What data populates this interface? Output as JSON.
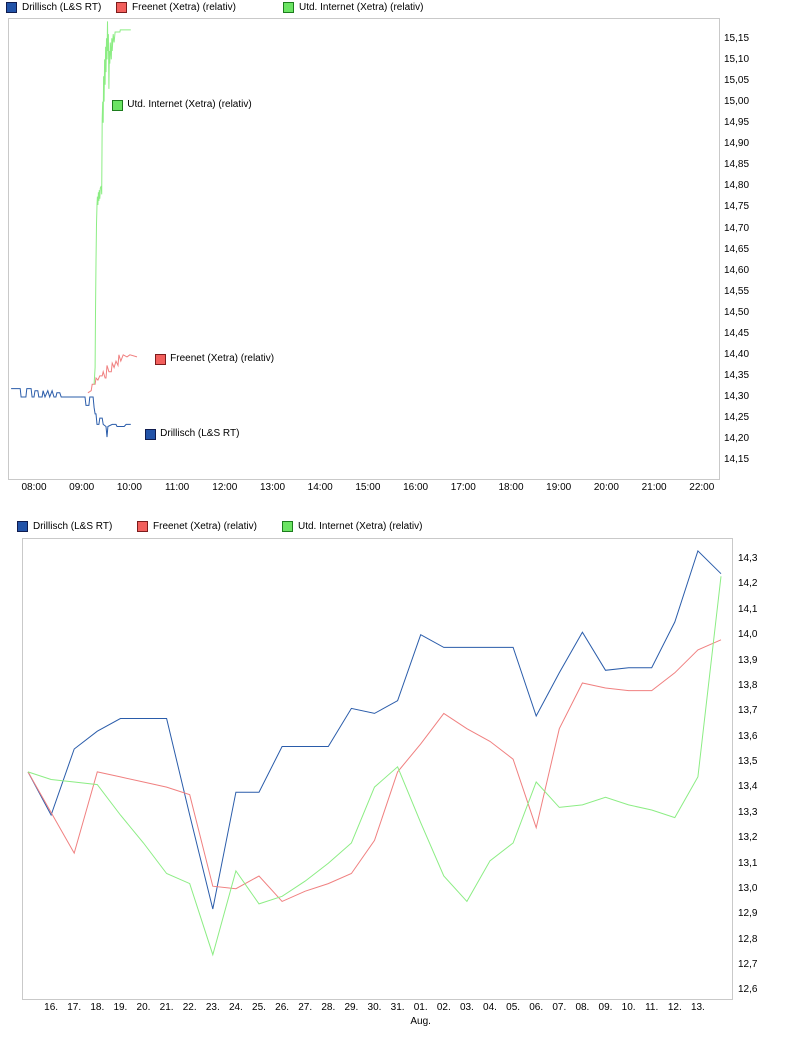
{
  "chart_data": [
    {
      "type": "line",
      "timeframe": "intraday",
      "legend": [
        {
          "label": "Drillisch (L&S RT)",
          "color": "#2253a8",
          "border": "#101c4e"
        },
        {
          "label": "Freenet (Xetra) (relativ)",
          "color": "#f25f5c",
          "border": "#7c1c1c"
        },
        {
          "label": "Utd. Internet (Xetra) (relativ)",
          "color": "#6be463",
          "border": "#1d7c1d"
        }
      ],
      "x_axis": {
        "tick_labels": [
          "08:00",
          "09:00",
          "10:00",
          "11:00",
          "12:00",
          "13:00",
          "14:00",
          "15:00",
          "16:00",
          "17:00",
          "18:00",
          "19:00",
          "20:00",
          "21:00",
          "22:00"
        ],
        "first_hour": 8,
        "step_hours": 1
      },
      "y_axis": {
        "tick_labels": [
          "15,15",
          "15,10",
          "15,05",
          "15,00",
          "14,95",
          "14,90",
          "14,85",
          "14,80",
          "14,75",
          "14,70",
          "14,65",
          "14,60",
          "14,55",
          "14,50",
          "14,45",
          "14,40",
          "14,35",
          "14,30",
          "14,25",
          "14,20",
          "14,15"
        ],
        "first_value": 15.15,
        "step": -0.05
      },
      "series": [
        {
          "name": "Drillisch (L&S RT)",
          "slug": "drillisch",
          "color": "#2a5caa",
          "points": [
            [
              7.52,
              14.32
            ],
            [
              7.71,
              14.32
            ],
            [
              7.73,
              14.3
            ],
            [
              7.83,
              14.3
            ],
            [
              7.85,
              14.32
            ],
            [
              7.94,
              14.32
            ],
            [
              7.96,
              14.3
            ],
            [
              8.0,
              14.3
            ],
            [
              8.02,
              14.315
            ],
            [
              8.08,
              14.315
            ],
            [
              8.1,
              14.3
            ],
            [
              8.17,
              14.3
            ],
            [
              8.19,
              14.315
            ],
            [
              8.23,
              14.3
            ],
            [
              8.29,
              14.315
            ],
            [
              8.33,
              14.3
            ],
            [
              8.38,
              14.315
            ],
            [
              8.42,
              14.3
            ],
            [
              8.46,
              14.3
            ],
            [
              8.48,
              14.31
            ],
            [
              8.54,
              14.31
            ],
            [
              8.57,
              14.3
            ],
            [
              9.07,
              14.3
            ],
            [
              9.09,
              14.28
            ],
            [
              9.15,
              14.28
            ],
            [
              9.17,
              14.3
            ],
            [
              9.24,
              14.3
            ],
            [
              9.26,
              14.275
            ],
            [
              9.28,
              14.26
            ],
            [
              9.3,
              14.26
            ],
            [
              9.32,
              14.235
            ],
            [
              9.36,
              14.235
            ],
            [
              9.38,
              14.25
            ],
            [
              9.43,
              14.25
            ],
            [
              9.45,
              14.235
            ],
            [
              9.51,
              14.23
            ],
            [
              9.53,
              14.205
            ],
            [
              9.55,
              14.23
            ],
            [
              9.64,
              14.235
            ],
            [
              9.72,
              14.235
            ],
            [
              9.74,
              14.23
            ],
            [
              9.89,
              14.23
            ],
            [
              9.93,
              14.235
            ],
            [
              10.03,
              14.235
            ]
          ]
        },
        {
          "name": "Freenet (Xetra) (relativ)",
          "slug": "freenet",
          "color": "#f08080",
          "points": [
            [
              9.13,
              14.31
            ],
            [
              9.2,
              14.315
            ],
            [
              9.22,
              14.33
            ],
            [
              9.28,
              14.33
            ],
            [
              9.3,
              14.345
            ],
            [
              9.34,
              14.34
            ],
            [
              9.38,
              14.35
            ],
            [
              9.43,
              14.35
            ],
            [
              9.45,
              14.36
            ],
            [
              9.49,
              14.345
            ],
            [
              9.51,
              14.345
            ],
            [
              9.53,
              14.375
            ],
            [
              9.57,
              14.36
            ],
            [
              9.62,
              14.36
            ],
            [
              9.64,
              14.38
            ],
            [
              9.68,
              14.37
            ],
            [
              9.72,
              14.385
            ],
            [
              9.76,
              14.375
            ],
            [
              9.78,
              14.4
            ],
            [
              9.82,
              14.385
            ],
            [
              9.87,
              14.4
            ],
            [
              9.95,
              14.395
            ],
            [
              10.01,
              14.4
            ],
            [
              10.16,
              14.395
            ]
          ]
        },
        {
          "name": "Utd. Internet (Xetra) (relativ)",
          "slug": "utd-internet",
          "color": "#8ced84",
          "points": [
            [
              9.26,
              14.33
            ],
            [
              9.28,
              14.37
            ],
            [
              9.29,
              14.5
            ],
            [
              9.3,
              14.62
            ],
            [
              9.31,
              14.71
            ],
            [
              9.32,
              14.755
            ],
            [
              9.33,
              14.775
            ],
            [
              9.34,
              14.755
            ],
            [
              9.35,
              14.785
            ],
            [
              9.36,
              14.765
            ],
            [
              9.37,
              14.79
            ],
            [
              9.38,
              14.77
            ],
            [
              9.39,
              14.795
            ],
            [
              9.41,
              14.8
            ],
            [
              9.42,
              14.78
            ],
            [
              9.43,
              14.96
            ],
            [
              9.44,
              15.0
            ],
            [
              9.45,
              14.95
            ],
            [
              9.46,
              15.06
            ],
            [
              9.47,
              15.0
            ],
            [
              9.48,
              15.1
            ],
            [
              9.49,
              15.04
            ],
            [
              9.5,
              15.13
            ],
            [
              9.51,
              15.07
            ],
            [
              9.52,
              15.15
            ],
            [
              9.53,
              15.1
            ],
            [
              9.54,
              15.19
            ],
            [
              9.55,
              15.12
            ],
            [
              9.56,
              15.16
            ],
            [
              9.57,
              15.03
            ],
            [
              9.58,
              15.12
            ],
            [
              9.59,
              15.09
            ],
            [
              9.6,
              15.14
            ],
            [
              9.62,
              15.1
            ],
            [
              9.63,
              15.15
            ],
            [
              9.64,
              15.12
            ],
            [
              9.66,
              15.16
            ],
            [
              9.68,
              15.14
            ],
            [
              9.7,
              15.165
            ],
            [
              9.8,
              15.165
            ],
            [
              9.81,
              15.17
            ],
            [
              10.03,
              15.17
            ]
          ]
        }
      ],
      "inline_labels": [
        {
          "text": "Utd. Internet (Xetra) (relativ)",
          "square_color": "#6be463",
          "square_border": "#1d7c1d",
          "t": 9.64,
          "v": 14.99
        },
        {
          "text": "Freenet (Xetra) (relativ)",
          "square_color": "#f25f5c",
          "square_border": "#7c1c1c",
          "t": 10.54,
          "v": 14.39
        },
        {
          "text": "Drillisch (L&S RT)",
          "square_color": "#2253a8",
          "square_border": "#101c4e",
          "t": 10.33,
          "v": 14.21
        }
      ]
    },
    {
      "type": "line",
      "timeframe": "daily",
      "legend": [
        {
          "label": "Drillisch (L&S RT)",
          "color": "#2253a8",
          "border": "#101c4e"
        },
        {
          "label": "Freenet (Xetra) (relativ)",
          "color": "#f25f5c",
          "border": "#7c1c1c"
        },
        {
          "label": "Utd. Internet (Xetra) (relativ)",
          "color": "#6be463",
          "border": "#1d7c1d"
        }
      ],
      "x_axis": {
        "tick_labels": [
          "16.",
          "17.",
          "18.",
          "19.",
          "20.",
          "21.",
          "22.",
          "23.",
          "24.",
          "25.",
          "26.",
          "27.",
          "28.",
          "29.",
          "30.",
          "31.",
          "01.",
          "02.",
          "03.",
          "04.",
          "05.",
          "06.",
          "07.",
          "08.",
          "09.",
          "10.",
          "11.",
          "12.",
          "13."
        ],
        "month_label": "Aug.",
        "label_slot_offset": 1
      },
      "y_axis": {
        "tick_labels": [
          "14,3",
          "14,2",
          "14,1",
          "14,0",
          "13,9",
          "13,8",
          "13,7",
          "13,6",
          "13,5",
          "13,4",
          "13,3",
          "13,2",
          "13,1",
          "13,0",
          "12,9",
          "12,8",
          "12,7",
          "12,6"
        ],
        "first_value": 14.3,
        "step": -0.1
      },
      "series": [
        {
          "name": "Drillisch (L&S RT)",
          "slug": "drillisch",
          "color": "#2a5caa",
          "values": [
            13.46,
            13.29,
            13.55,
            13.62,
            13.67,
            13.67,
            13.67,
            13.29,
            12.92,
            13.38,
            13.38,
            13.56,
            13.56,
            13.56,
            13.71,
            13.69,
            13.74,
            14.0,
            13.95,
            13.95,
            13.95,
            13.95,
            13.68,
            13.85,
            14.01,
            13.86,
            13.87,
            13.87,
            14.05,
            14.33,
            14.24
          ]
        },
        {
          "name": "Freenet (Xetra) (relativ)",
          "slug": "freenet",
          "color": "#f08080",
          "values": [
            13.46,
            13.3,
            13.14,
            13.46,
            13.44,
            13.42,
            13.4,
            13.37,
            13.01,
            13.0,
            13.05,
            12.95,
            12.99,
            13.02,
            13.06,
            13.19,
            13.46,
            13.57,
            13.69,
            13.63,
            13.58,
            13.51,
            13.24,
            13.63,
            13.81,
            13.79,
            13.78,
            13.78,
            13.85,
            13.94,
            13.98
          ]
        },
        {
          "name": "Utd. Internet (Xetra) (relativ)",
          "slug": "utd-internet",
          "color": "#8ced84",
          "values": [
            13.46,
            13.43,
            13.42,
            13.41,
            13.29,
            13.18,
            13.06,
            13.02,
            12.74,
            13.07,
            12.94,
            12.97,
            13.03,
            13.1,
            13.18,
            13.4,
            13.48,
            13.26,
            13.05,
            12.95,
            13.11,
            13.18,
            13.42,
            13.32,
            13.33,
            13.36,
            13.33,
            13.31,
            13.28,
            13.44,
            14.23
          ]
        }
      ]
    }
  ]
}
